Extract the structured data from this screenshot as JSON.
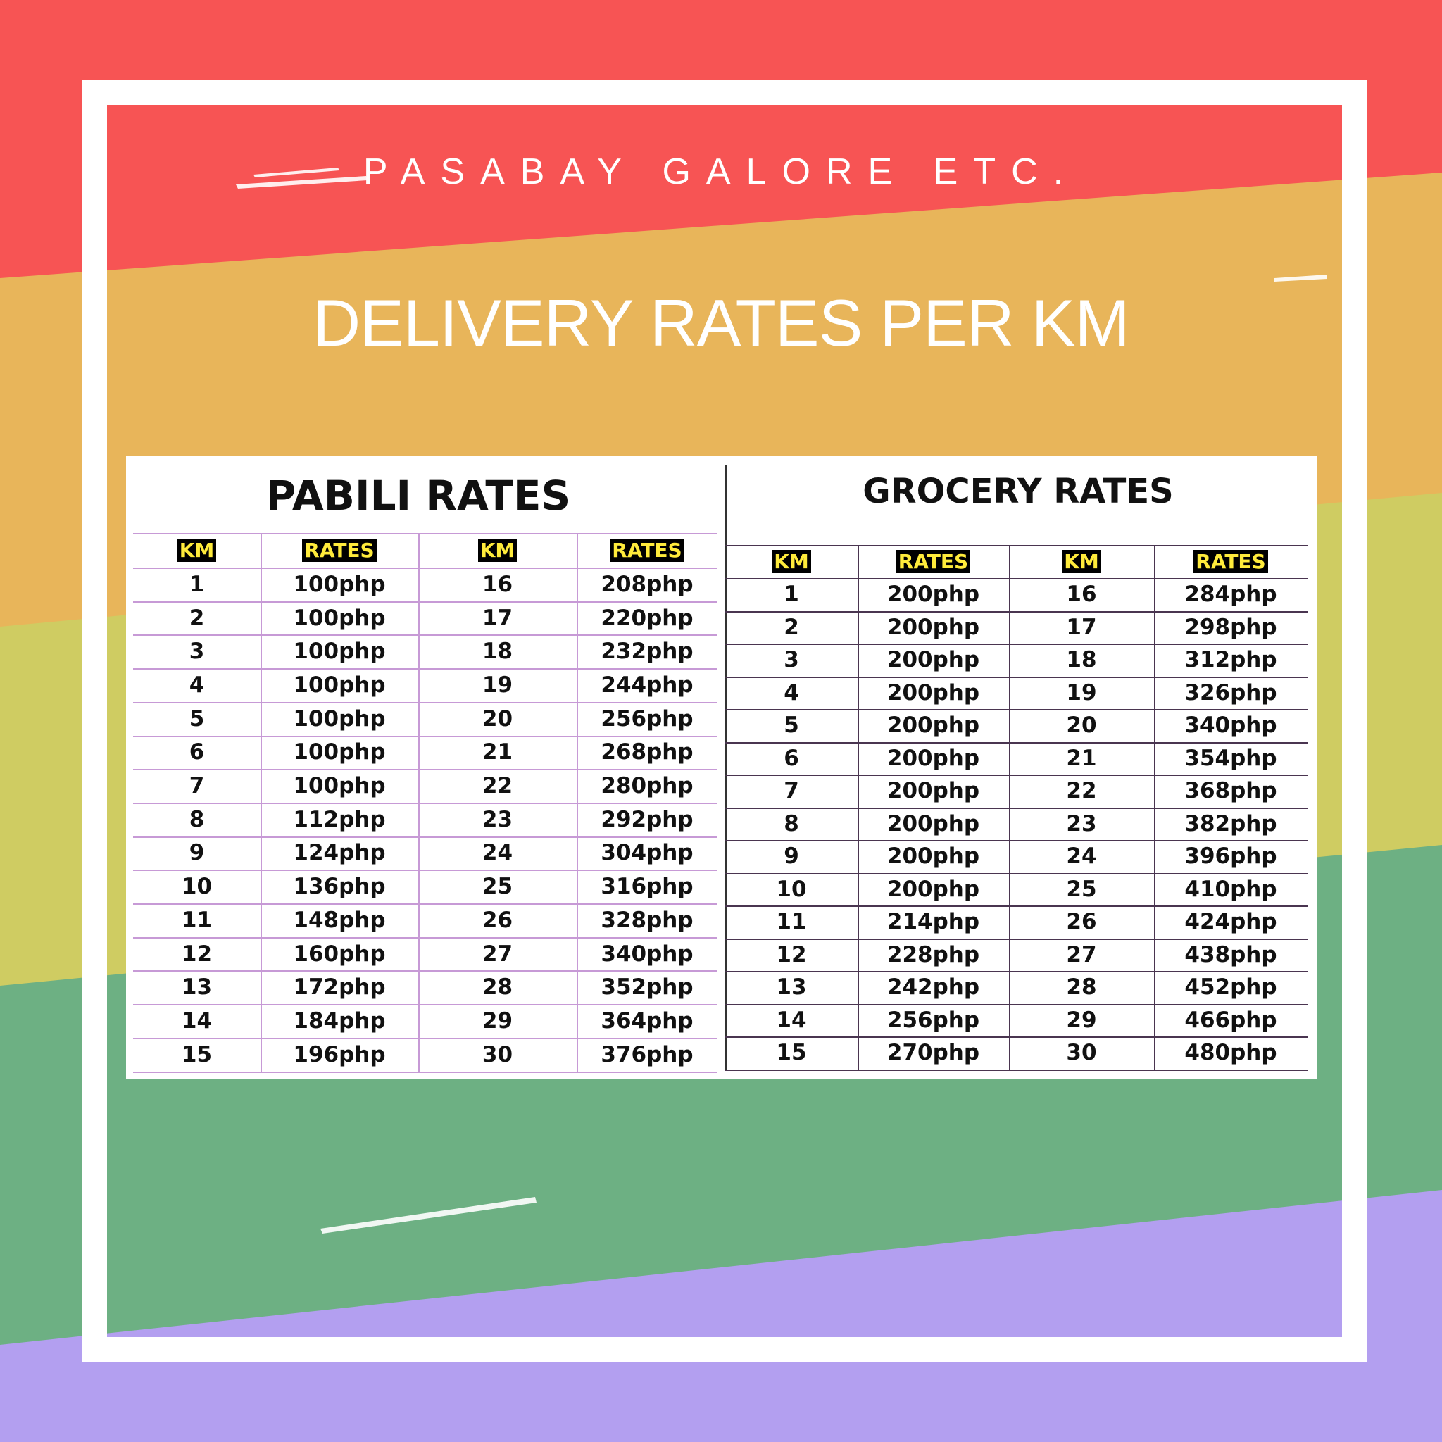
{
  "header": {
    "brand": "PASABAY GALORE ETC.",
    "title": "DELIVERY RATES PER KM"
  },
  "tables": [
    {
      "title": "PABILI RATES",
      "columns": [
        "KM",
        "RATES",
        "KM",
        "RATES"
      ],
      "rows": [
        [
          "1",
          "100php",
          "16",
          "208php"
        ],
        [
          "2",
          "100php",
          "17",
          "220php"
        ],
        [
          "3",
          "100php",
          "18",
          "232php"
        ],
        [
          "4",
          "100php",
          "19",
          "244php"
        ],
        [
          "5",
          "100php",
          "20",
          "256php"
        ],
        [
          "6",
          "100php",
          "21",
          "268php"
        ],
        [
          "7",
          "100php",
          "22",
          "280php"
        ],
        [
          "8",
          "112php",
          "23",
          "292php"
        ],
        [
          "9",
          "124php",
          "24",
          "304php"
        ],
        [
          "10",
          "136php",
          "25",
          "316php"
        ],
        [
          "11",
          "148php",
          "26",
          "328php"
        ],
        [
          "12",
          "160php",
          "27",
          "340php"
        ],
        [
          "13",
          "172php",
          "28",
          "352php"
        ],
        [
          "14",
          "184php",
          "29",
          "364php"
        ],
        [
          "15",
          "196php",
          "30",
          "376php"
        ]
      ]
    },
    {
      "title": "GROCERY RATES",
      "columns": [
        "KM",
        "RATES",
        "KM",
        "RATES"
      ],
      "rows": [
        [
          "1",
          "200php",
          "16",
          "284php"
        ],
        [
          "2",
          "200php",
          "17",
          "298php"
        ],
        [
          "3",
          "200php",
          "18",
          "312php"
        ],
        [
          "4",
          "200php",
          "19",
          "326php"
        ],
        [
          "5",
          "200php",
          "20",
          "340php"
        ],
        [
          "6",
          "200php",
          "21",
          "354php"
        ],
        [
          "7",
          "200php",
          "22",
          "368php"
        ],
        [
          "8",
          "200php",
          "23",
          "382php"
        ],
        [
          "9",
          "200php",
          "24",
          "396php"
        ],
        [
          "10",
          "200php",
          "25",
          "410php"
        ],
        [
          "11",
          "214php",
          "26",
          "424php"
        ],
        [
          "12",
          "228php",
          "27",
          "438php"
        ],
        [
          "13",
          "242php",
          "28",
          "452php"
        ],
        [
          "14",
          "256php",
          "29",
          "466php"
        ],
        [
          "15",
          "270php",
          "30",
          "480php"
        ]
      ]
    }
  ]
}
